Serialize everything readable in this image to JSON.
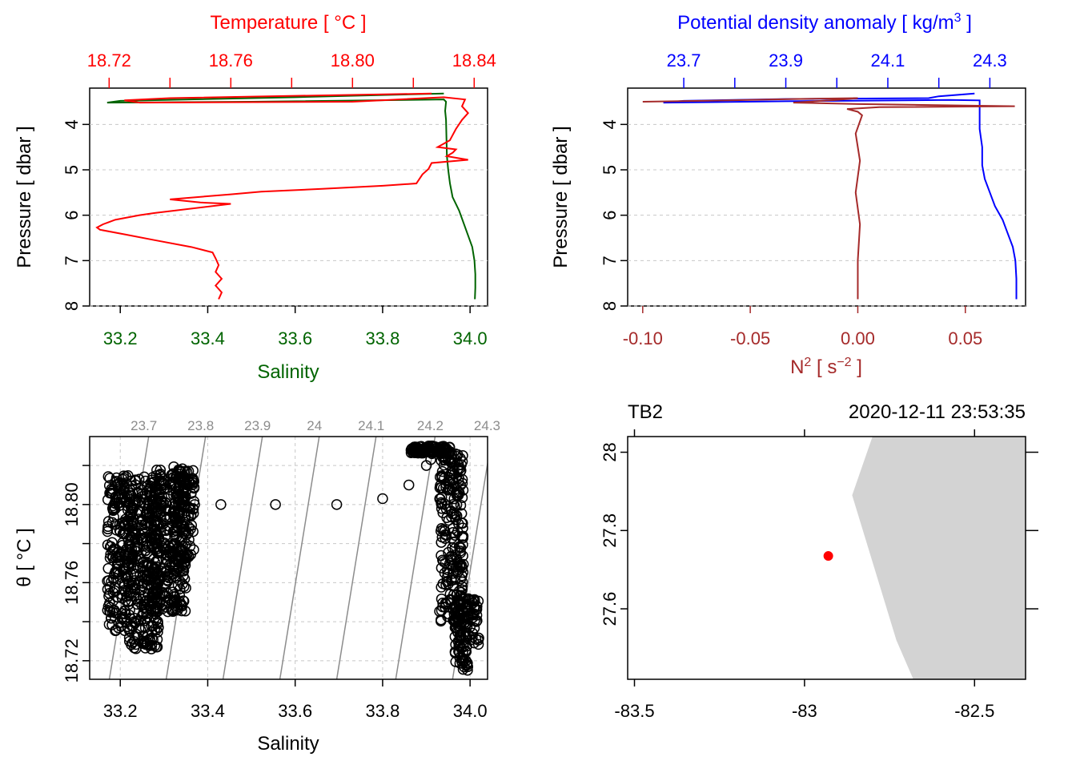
{
  "colors": {
    "temperature": "#ff0000",
    "salinity": "#006400",
    "density": "#0000ff",
    "n2": "#a52a2a",
    "isopycnal": "#8c8c8c",
    "grid": "#c8c8c8",
    "land": "#d3d3d3",
    "station": "#ff0000"
  },
  "chart_data": [
    {
      "type": "line",
      "panel": "TS profile",
      "top_axis_label": "Temperature [ °C ]",
      "top_ticks": [
        "18.72",
        "18.76",
        "18.80",
        "18.84"
      ],
      "bottom_axis_label": "Salinity",
      "bottom_ticks": [
        "33.2",
        "33.4",
        "33.6",
        "33.8",
        "34.0"
      ],
      "ylabel": "Pressure [ dbar ]",
      "y_ticks": [
        "4",
        "5",
        "6",
        "7",
        "8"
      ],
      "ylim": [
        8.0,
        3.2
      ],
      "temperature_xlim": [
        18.7136,
        18.8444
      ],
      "salinity_xlim": [
        33.13,
        34.04
      ],
      "series": [
        {
          "name": "Temperature",
          "points": [
            [
              18.826,
              3.32
            ],
            [
              18.79,
              3.36
            ],
            [
              18.74,
              3.42
            ],
            [
              18.725,
              3.47
            ],
            [
              18.73,
              3.52
            ],
            [
              18.8,
              3.5
            ],
            [
              18.83,
              3.4
            ],
            [
              18.837,
              3.45
            ],
            [
              18.836,
              3.6
            ],
            [
              18.838,
              3.75
            ],
            [
              18.836,
              3.9
            ],
            [
              18.834,
              4.1
            ],
            [
              18.832,
              4.35
            ],
            [
              18.828,
              4.5
            ],
            [
              18.834,
              4.55
            ],
            [
              18.833,
              4.62
            ],
            [
              18.831,
              4.7
            ],
            [
              18.838,
              4.78
            ],
            [
              18.826,
              4.85
            ],
            [
              18.825,
              4.98
            ],
            [
              18.823,
              5.1
            ],
            [
              18.821,
              5.3
            ],
            [
              18.81,
              5.35
            ],
            [
              18.79,
              5.42
            ],
            [
              18.77,
              5.48
            ],
            [
              18.76,
              5.54
            ],
            [
              18.74,
              5.65
            ],
            [
              18.75,
              5.72
            ],
            [
              18.76,
              5.75
            ],
            [
              18.735,
              5.95
            ],
            [
              18.73,
              6.0
            ],
            [
              18.726,
              6.05
            ],
            [
              18.722,
              6.1
            ],
            [
              18.72,
              6.15
            ],
            [
              18.718,
              6.2
            ],
            [
              18.716,
              6.27
            ],
            [
              18.717,
              6.32
            ],
            [
              18.725,
              6.42
            ],
            [
              18.735,
              6.55
            ],
            [
              18.747,
              6.7
            ],
            [
              18.754,
              6.82
            ],
            [
              18.755,
              6.95
            ],
            [
              18.756,
              7.1
            ],
            [
              18.755,
              7.25
            ],
            [
              18.757,
              7.4
            ],
            [
              18.755,
              7.55
            ],
            [
              18.757,
              7.7
            ],
            [
              18.756,
              7.85
            ]
          ]
        },
        {
          "name": "Salinity",
          "points": [
            [
              33.94,
              3.32
            ],
            [
              33.6,
              3.4
            ],
            [
              33.2,
              3.48
            ],
            [
              33.17,
              3.52
            ],
            [
              33.5,
              3.5
            ],
            [
              33.94,
              3.45
            ],
            [
              33.945,
              3.5
            ],
            [
              33.943,
              3.7
            ],
            [
              33.945,
              3.9
            ],
            [
              33.946,
              4.3
            ],
            [
              33.947,
              4.7
            ],
            [
              33.95,
              5.0
            ],
            [
              33.954,
              5.3
            ],
            [
              33.96,
              5.6
            ],
            [
              33.975,
              5.9
            ],
            [
              33.99,
              6.3
            ],
            [
              34.005,
              6.7
            ],
            [
              34.01,
              7.0
            ],
            [
              34.012,
              7.3
            ],
            [
              34.012,
              7.6
            ],
            [
              34.011,
              7.85
            ]
          ]
        }
      ]
    },
    {
      "type": "line",
      "panel": "density and N2 profile",
      "top_axis_label": "Potential density anomaly [ kg/m",
      "top_axis_label_sup": "3",
      "top_axis_label_end": " ]",
      "top_ticks": [
        "23.7",
        "23.9",
        "24.1",
        "24.3"
      ],
      "bottom_axis_label": "N",
      "bottom_axis_label_sup": "2",
      "bottom_axis_label_mid": " [ s",
      "bottom_axis_label_sup2": "−2",
      "bottom_axis_label_end": " ]",
      "bottom_ticks": [
        "-0.10",
        "-0.05",
        "0.00",
        "0.05"
      ],
      "ylabel": "Pressure [ dbar ]",
      "y_ticks": [
        "4",
        "5",
        "6",
        "7",
        "8"
      ],
      "ylim": [
        8.0,
        3.2
      ],
      "density_xlim": [
        23.59,
        24.37
      ],
      "n2_xlim": [
        -0.107,
        0.078
      ],
      "series": [
        {
          "name": "Potential density anomaly",
          "points": [
            [
              24.27,
              3.32
            ],
            [
              24.2,
              3.38
            ],
            [
              24.18,
              3.42
            ],
            [
              23.9,
              3.44
            ],
            [
              23.7,
              3.48
            ],
            [
              23.66,
              3.52
            ],
            [
              23.9,
              3.49
            ],
            [
              24.22,
              3.46
            ],
            [
              24.28,
              3.47
            ],
            [
              24.28,
              3.7
            ],
            [
              24.28,
              4.1
            ],
            [
              24.285,
              4.5
            ],
            [
              24.285,
              4.9
            ],
            [
              24.29,
              5.2
            ],
            [
              24.3,
              5.5
            ],
            [
              24.31,
              5.8
            ],
            [
              24.325,
              6.1
            ],
            [
              24.335,
              6.4
            ],
            [
              24.345,
              6.7
            ],
            [
              24.35,
              7.0
            ],
            [
              24.352,
              7.4
            ],
            [
              24.352,
              7.85
            ]
          ]
        },
        {
          "name": "N2",
          "points": [
            [
              -0.1,
              3.5
            ],
            [
              -0.06,
              3.47
            ],
            [
              -0.03,
              3.44
            ],
            [
              0.0,
              3.42
            ],
            [
              -0.01,
              3.46
            ],
            [
              -0.03,
              3.52
            ],
            [
              0.0,
              3.55
            ],
            [
              0.073,
              3.6
            ],
            [
              0.01,
              3.62
            ],
            [
              -0.005,
              3.66
            ],
            [
              0.0,
              3.72
            ],
            [
              0.002,
              3.8
            ],
            [
              -0.001,
              4.2
            ],
            [
              0.001,
              4.8
            ],
            [
              -0.001,
              5.5
            ],
            [
              0.001,
              6.2
            ],
            [
              0.0,
              7.0
            ],
            [
              0.0,
              7.85
            ]
          ]
        }
      ]
    },
    {
      "type": "scatter",
      "panel": "TS diagram",
      "xlabel": "Salinity",
      "x_ticks": [
        "33.2",
        "33.4",
        "33.6",
        "33.8",
        "34.0"
      ],
      "ylabel": "θ [ °C ]",
      "y_ticks": [
        "18.72",
        "18.76",
        "18.80"
      ],
      "xlim": [
        33.13,
        34.04
      ],
      "ylim": [
        18.7105,
        18.8348
      ],
      "isopycnal_labels": [
        "23.7",
        "23.8",
        "23.9",
        "24",
        "24.1",
        "24.2",
        "24.3"
      ],
      "isopycnals": [
        {
          "label": "23.7",
          "s_bottom": 33.175,
          "s_top": 33.265
        },
        {
          "label": "23.8",
          "s_bottom": 33.305,
          "s_top": 33.395
        },
        {
          "label": "23.9",
          "s_bottom": 33.435,
          "s_top": 33.525
        },
        {
          "label": "24",
          "s_bottom": 33.565,
          "s_top": 33.655
        },
        {
          "label": "24.1",
          "s_bottom": 33.695,
          "s_top": 33.785
        },
        {
          "label": "24.2",
          "s_bottom": 33.83,
          "s_top": 33.92
        },
        {
          "label": "24.3",
          "s_bottom": 33.96,
          "s_top": 34.05
        }
      ],
      "clusters": [
        {
          "s_min": 33.17,
          "s_max": 33.23,
          "t_min": 18.735,
          "t_max": 18.815,
          "n": 220
        },
        {
          "s_min": 33.22,
          "s_max": 33.29,
          "t_min": 18.726,
          "t_max": 18.815,
          "n": 300
        },
        {
          "s_min": 33.27,
          "s_max": 33.35,
          "t_min": 18.745,
          "t_max": 18.818,
          "n": 300
        },
        {
          "s_min": 33.32,
          "s_max": 33.37,
          "t_min": 18.772,
          "t_max": 18.82,
          "n": 120
        },
        {
          "s_min": 33.865,
          "s_max": 33.955,
          "t_min": 18.826,
          "t_max": 18.83,
          "n": 110
        },
        {
          "s_min": 33.93,
          "s_max": 33.985,
          "t_min": 18.74,
          "t_max": 18.826,
          "n": 220
        },
        {
          "s_min": 33.965,
          "s_max": 33.995,
          "t_min": 18.715,
          "t_max": 18.75,
          "n": 90
        },
        {
          "s_min": 33.99,
          "s_max": 34.02,
          "t_min": 18.728,
          "t_max": 18.752,
          "n": 40
        }
      ],
      "points": [
        [
          33.18,
          18.808
        ],
        [
          33.22,
          18.806
        ],
        [
          33.37,
          18.8
        ],
        [
          33.43,
          18.8
        ],
        [
          33.555,
          18.8
        ],
        [
          33.695,
          18.8
        ],
        [
          33.8,
          18.803
        ],
        [
          33.86,
          18.81
        ],
        [
          33.9,
          18.82
        ],
        [
          33.91,
          18.823
        ]
      ]
    },
    {
      "type": "scatter",
      "panel": "map",
      "station_name": "TB2",
      "datetime": "2020-12-11 23:53:35",
      "x_ticks": [
        "-83.5",
        "-83",
        "-82.5"
      ],
      "y_ticks": [
        "28",
        "27.8",
        "27.6"
      ],
      "xlim": [
        -83.52,
        -82.35
      ],
      "ylim": [
        27.42,
        28.04
      ],
      "station": {
        "lon": -82.93,
        "lat": 27.735
      },
      "coastline": [
        [
          -82.8,
          28.04
        ],
        [
          -82.86,
          27.89
        ],
        [
          -82.73,
          27.52
        ],
        [
          -82.68,
          27.42
        ]
      ]
    }
  ]
}
